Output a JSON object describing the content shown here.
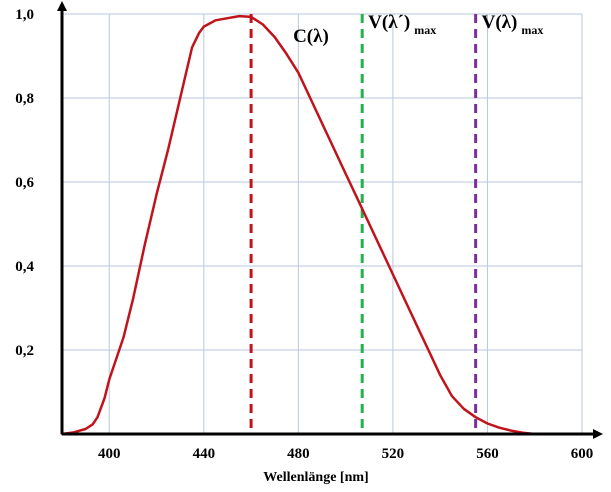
{
  "chart_data": {
    "type": "line",
    "title": "",
    "xlabel": "Wellenlänge [nm]",
    "ylabel": "",
    "xlim": [
      380,
      600
    ],
    "ylim": [
      0,
      1.0
    ],
    "grid": true,
    "x_ticks": [
      400,
      440,
      480,
      520,
      560,
      600
    ],
    "x_tick_labels": [
      "400",
      "440",
      "480",
      "520",
      "560",
      "600"
    ],
    "y_ticks": [
      0.2,
      0.4,
      0.6,
      0.8,
      1.0
    ],
    "y_tick_labels": [
      "0,2",
      "0,4",
      "0,6",
      "0,8",
      "1,0"
    ],
    "series": [
      {
        "name": "C(λ)",
        "color": "#c0141c",
        "x": [
          380,
          385,
          390,
          393,
          395,
          398,
          400,
          403,
          406,
          410,
          415,
          420,
          425,
          430,
          435,
          438,
          440,
          445,
          450,
          455,
          460,
          465,
          470,
          475,
          480,
          485,
          490,
          495,
          500,
          505,
          510,
          515,
          520,
          525,
          530,
          535,
          540,
          545,
          550,
          555,
          560,
          565,
          570,
          575,
          580
        ],
        "y": [
          0.0,
          0.004,
          0.012,
          0.023,
          0.04,
          0.085,
          0.13,
          0.18,
          0.23,
          0.32,
          0.45,
          0.57,
          0.68,
          0.8,
          0.92,
          0.955,
          0.97,
          0.985,
          0.99,
          0.995,
          0.993,
          0.975,
          0.945,
          0.905,
          0.86,
          0.8,
          0.74,
          0.68,
          0.62,
          0.56,
          0.5,
          0.44,
          0.38,
          0.32,
          0.26,
          0.2,
          0.14,
          0.09,
          0.06,
          0.04,
          0.025,
          0.015,
          0.008,
          0.003,
          0.0
        ]
      }
    ],
    "annotations": [
      {
        "label": "C(λ)",
        "sub": "",
        "x": 460,
        "color": "#c0141c"
      },
      {
        "label": "V(λ´)",
        "sub": "max",
        "x": 507,
        "color": "#22b14c"
      },
      {
        "label": "V(λ)",
        "sub": "max",
        "x": 555,
        "color": "#7a2f9c"
      }
    ]
  }
}
